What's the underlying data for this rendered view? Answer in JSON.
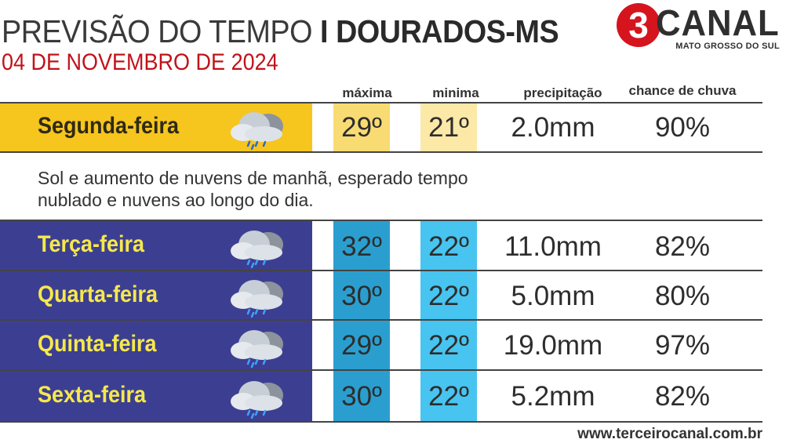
{
  "header": {
    "title_prefix": "PREVISÃO DO TEMPO ",
    "title_location": "I DOURADOS-MS",
    "date": "04 DE NOVEMBRO DE 2024"
  },
  "logo": {
    "number": "3",
    "word": "CANAL",
    "subtitle": "MATO GROSSO DO SUL",
    "brand_color": "#d5141d"
  },
  "columns": {
    "max": "máxima",
    "min": "minima",
    "precip": "precipitação",
    "chance": "chance de chuva"
  },
  "days": [
    {
      "name": "Segunda-feira",
      "max": "29º",
      "min": "21º",
      "precip": "2.0mm",
      "chance": "90%",
      "icon": "rain-cloud-icon"
    },
    {
      "name": "Terça-feira",
      "max": "32º",
      "min": "22º",
      "precip": "11.0mm",
      "chance": "82%",
      "icon": "rain-cloud-icon"
    },
    {
      "name": "Quarta-feira",
      "max": "30º",
      "min": "22º",
      "precip": "5.0mm",
      "chance": "80%",
      "icon": "rain-cloud-icon"
    },
    {
      "name": "Quinta-feira",
      "max": "29º",
      "min": "22º",
      "precip": "19.0mm",
      "chance": "97%",
      "icon": "rain-cloud-icon"
    },
    {
      "name": "Sexta-feira",
      "max": "30º",
      "min": "22º",
      "precip": "5.2mm",
      "chance": "82%",
      "icon": "rain-cloud-icon"
    }
  ],
  "description": "Sol e aumento de nuvens de manhã, esperado tempo nublado e nuvens ao longo do dia.",
  "footer": "www.terceirocanal.com.br",
  "colors": {
    "monday_band": "#f6c51e",
    "weekday_band": "#3c3f91",
    "weekday_label": "#f6e84c",
    "max_cell": "#2a9fcf",
    "min_cell": "#48c4f0",
    "date_red": "#c1121a"
  }
}
